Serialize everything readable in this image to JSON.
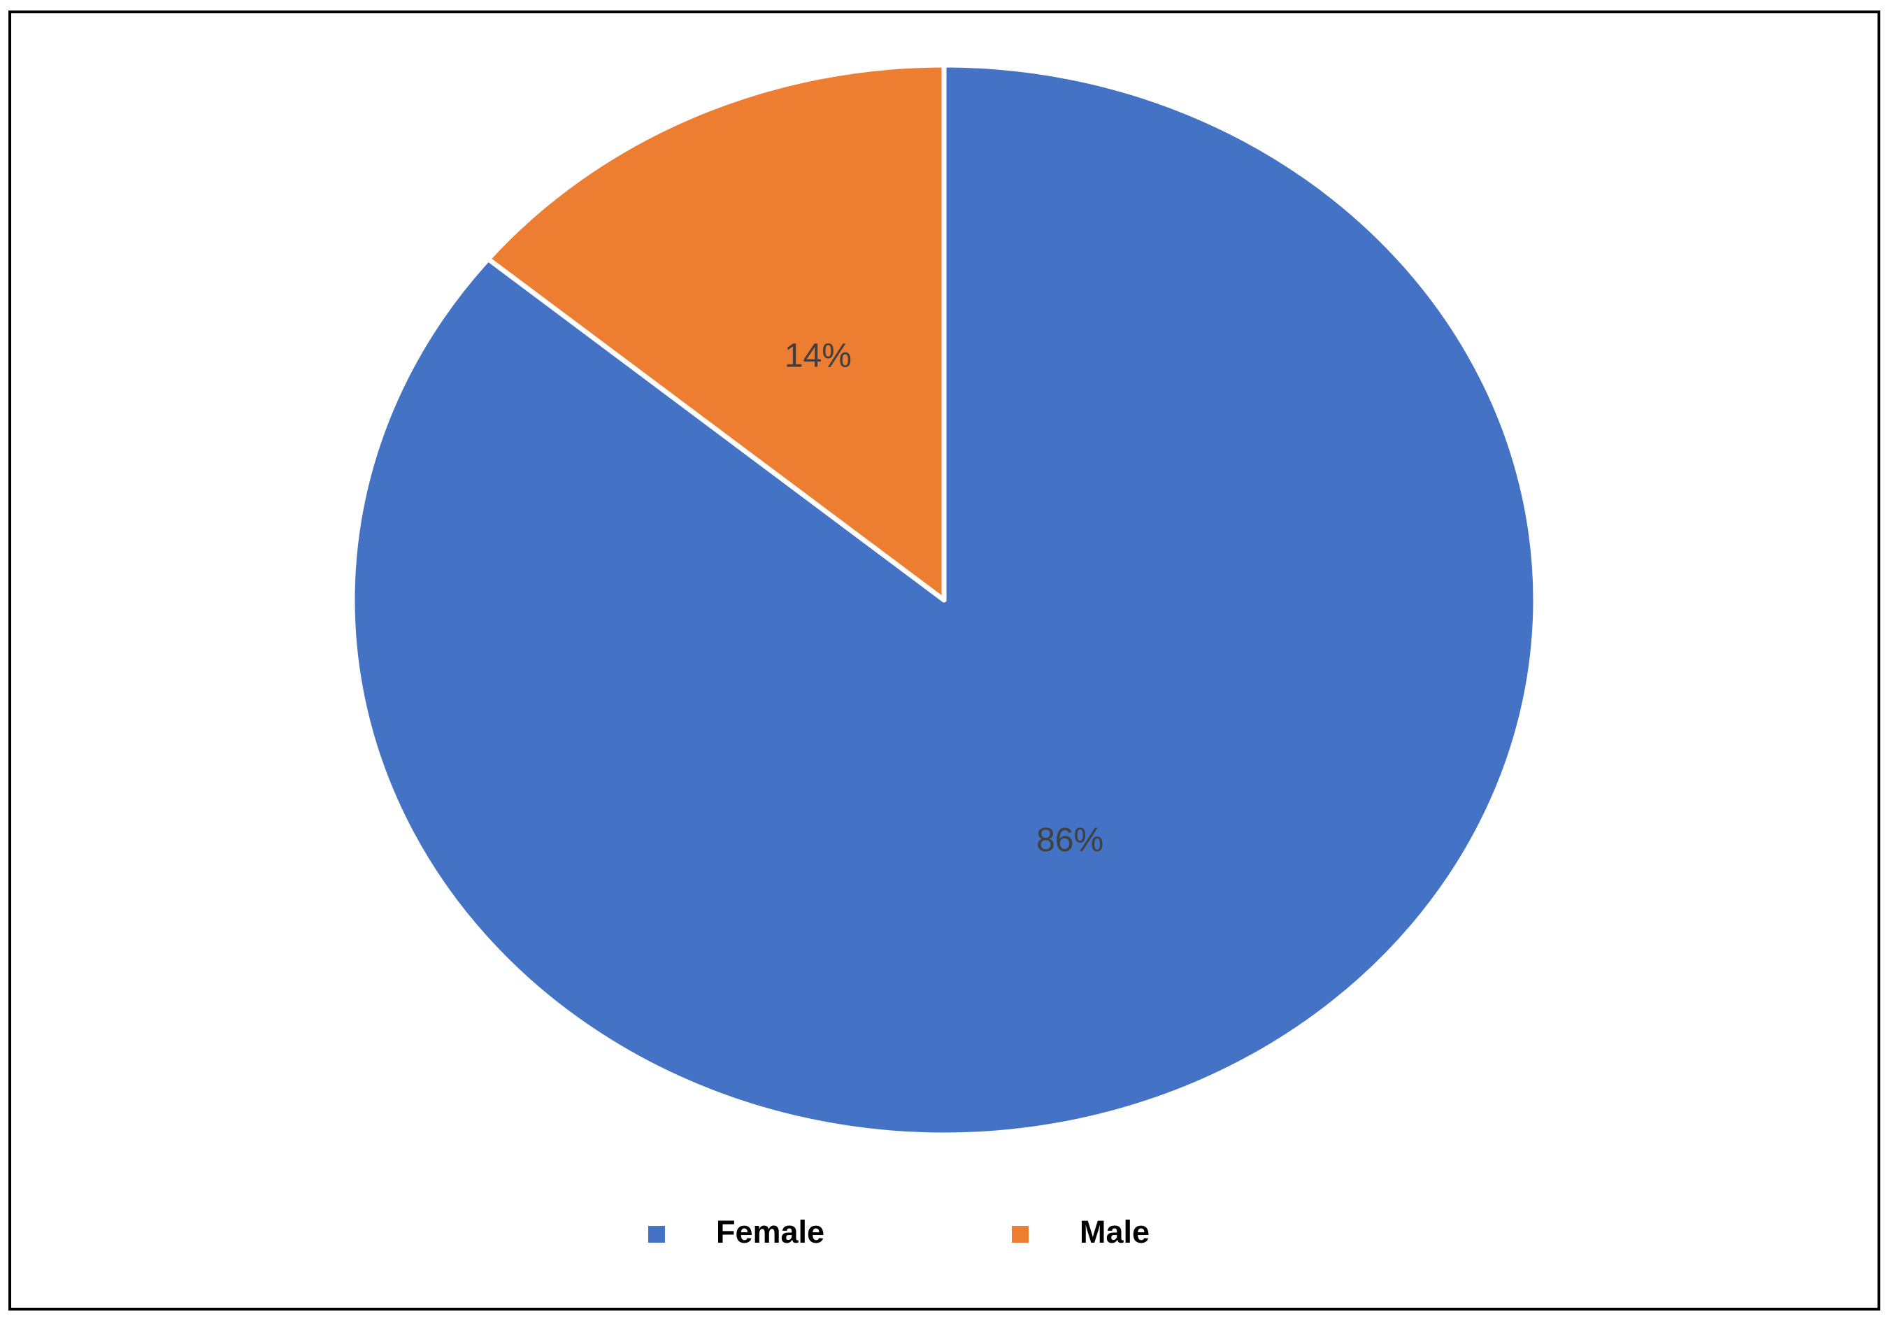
{
  "chart_data": {
    "type": "pie",
    "categories": [
      "Female",
      "Male"
    ],
    "values": [
      86,
      14
    ],
    "value_labels": [
      "86%",
      "14%"
    ],
    "colors": [
      "#4472c4",
      "#ed7d31"
    ],
    "legend": "bottom"
  }
}
